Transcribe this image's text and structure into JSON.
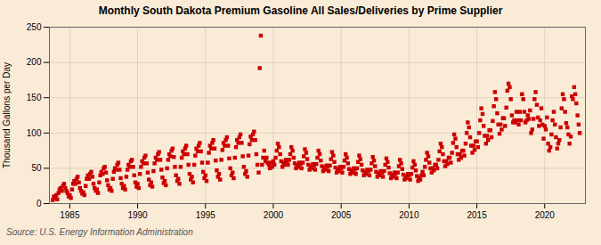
{
  "chart_data": {
    "type": "scatter",
    "title": "Monthly South Dakota Premium Gasoline All Sales/Deliveries by Prime Supplier",
    "ylabel": "Thousand Gallons per Day",
    "annotations": [
      "Source: U.S. Energy Information Administration"
    ],
    "color": "#cc0000",
    "marker": "square",
    "grid": true,
    "xlim": [
      1983.5,
      2023.0
    ],
    "ylim": [
      0,
      250
    ],
    "xticks": [
      1985,
      1990,
      1995,
      2000,
      2005,
      2010,
      2015,
      2020
    ],
    "yticks": [
      0,
      50,
      100,
      150,
      200,
      250
    ],
    "x": [
      1983.75,
      1983.83,
      1983.92,
      1984.0,
      1984.08,
      1984.17,
      1984.25,
      1984.33,
      1984.42,
      1984.5,
      1984.58,
      1984.67,
      1984.75,
      1984.83,
      1984.92,
      1985.0,
      1985.08,
      1985.17,
      1985.25,
      1985.33,
      1985.42,
      1985.5,
      1985.58,
      1985.67,
      1985.75,
      1985.83,
      1985.92,
      1986.0,
      1986.08,
      1986.17,
      1986.25,
      1986.33,
      1986.42,
      1986.5,
      1986.58,
      1986.67,
      1986.75,
      1986.83,
      1986.92,
      1987.0,
      1987.08,
      1987.17,
      1987.25,
      1987.33,
      1987.42,
      1987.5,
      1987.58,
      1987.67,
      1987.75,
      1987.83,
      1987.92,
      1988.0,
      1988.08,
      1988.17,
      1988.25,
      1988.33,
      1988.42,
      1988.5,
      1988.58,
      1988.67,
      1988.75,
      1988.83,
      1988.92,
      1989.0,
      1989.08,
      1989.17,
      1989.25,
      1989.33,
      1989.42,
      1989.5,
      1989.58,
      1989.67,
      1989.75,
      1989.83,
      1989.92,
      1990.0,
      1990.08,
      1990.17,
      1990.25,
      1990.33,
      1990.42,
      1990.5,
      1990.58,
      1990.67,
      1990.75,
      1990.83,
      1990.92,
      1991.0,
      1991.08,
      1991.17,
      1991.25,
      1991.33,
      1991.42,
      1991.5,
      1991.58,
      1991.67,
      1991.75,
      1991.83,
      1991.92,
      1992.0,
      1992.08,
      1992.17,
      1992.25,
      1992.33,
      1992.42,
      1992.5,
      1992.58,
      1992.67,
      1992.75,
      1992.83,
      1992.92,
      1993.0,
      1993.08,
      1993.17,
      1993.25,
      1993.33,
      1993.42,
      1993.5,
      1993.58,
      1993.67,
      1993.75,
      1993.83,
      1993.92,
      1994.0,
      1994.08,
      1994.17,
      1994.25,
      1994.33,
      1994.42,
      1994.5,
      1994.58,
      1994.67,
      1994.75,
      1994.83,
      1994.92,
      1995.0,
      1995.08,
      1995.17,
      1995.25,
      1995.33,
      1995.42,
      1995.5,
      1995.58,
      1995.67,
      1995.75,
      1995.83,
      1995.92,
      1996.0,
      1996.08,
      1996.17,
      1996.25,
      1996.33,
      1996.42,
      1996.5,
      1996.58,
      1996.67,
      1996.75,
      1996.83,
      1996.92,
      1997.0,
      1997.08,
      1997.17,
      1997.25,
      1997.33,
      1997.42,
      1997.5,
      1997.58,
      1997.67,
      1997.75,
      1997.83,
      1997.92,
      1998.0,
      1998.08,
      1998.17,
      1998.25,
      1998.33,
      1998.42,
      1998.5,
      1998.58,
      1998.67,
      1998.75,
      1998.83,
      1998.92,
      1999.0,
      1999.08,
      1999.17,
      1999.25,
      1999.33,
      1999.42,
      1999.5,
      1999.58,
      1999.67,
      1999.75,
      1999.83,
      1999.92,
      2000.0,
      2000.08,
      2000.17,
      2000.25,
      2000.33,
      2000.42,
      2000.5,
      2000.58,
      2000.67,
      2000.75,
      2000.83,
      2000.92,
      2001.0,
      2001.08,
      2001.17,
      2001.25,
      2001.33,
      2001.42,
      2001.5,
      2001.58,
      2001.67,
      2001.75,
      2001.83,
      2001.92,
      2002.0,
      2002.08,
      2002.17,
      2002.25,
      2002.33,
      2002.42,
      2002.5,
      2002.58,
      2002.67,
      2002.75,
      2002.83,
      2002.92,
      2003.0,
      2003.08,
      2003.17,
      2003.25,
      2003.33,
      2003.42,
      2003.5,
      2003.58,
      2003.67,
      2003.75,
      2003.83,
      2003.92,
      2004.0,
      2004.08,
      2004.17,
      2004.25,
      2004.33,
      2004.42,
      2004.5,
      2004.58,
      2004.67,
      2004.75,
      2004.83,
      2004.92,
      2005.0,
      2005.08,
      2005.17,
      2005.25,
      2005.33,
      2005.42,
      2005.5,
      2005.58,
      2005.67,
      2005.75,
      2005.83,
      2005.92,
      2006.0,
      2006.08,
      2006.17,
      2006.25,
      2006.33,
      2006.42,
      2006.5,
      2006.58,
      2006.67,
      2006.75,
      2006.83,
      2006.92,
      2007.0,
      2007.08,
      2007.17,
      2007.25,
      2007.33,
      2007.42,
      2007.5,
      2007.58,
      2007.67,
      2007.75,
      2007.83,
      2007.92,
      2008.0,
      2008.08,
      2008.17,
      2008.25,
      2008.33,
      2008.42,
      2008.5,
      2008.58,
      2008.67,
      2008.75,
      2008.83,
      2008.92,
      2009.0,
      2009.08,
      2009.17,
      2009.25,
      2009.33,
      2009.42,
      2009.5,
      2009.58,
      2009.67,
      2009.75,
      2009.83,
      2009.92,
      2010.0,
      2010.08,
      2010.17,
      2010.25,
      2010.33,
      2010.42,
      2010.5,
      2010.58,
      2010.67,
      2010.75,
      2010.83,
      2010.92,
      2011.0,
      2011.08,
      2011.17,
      2011.25,
      2011.33,
      2011.42,
      2011.5,
      2011.58,
      2011.67,
      2011.75,
      2011.83,
      2011.92,
      2012.0,
      2012.08,
      2012.17,
      2012.25,
      2012.33,
      2012.42,
      2012.5,
      2012.58,
      2012.67,
      2012.75,
      2012.83,
      2012.92,
      2013.0,
      2013.08,
      2013.17,
      2013.25,
      2013.33,
      2013.42,
      2013.5,
      2013.58,
      2013.67,
      2013.75,
      2013.83,
      2013.92,
      2014.0,
      2014.08,
      2014.17,
      2014.25,
      2014.33,
      2014.42,
      2014.5,
      2014.58,
      2014.67,
      2014.75,
      2014.83,
      2014.92,
      2015.0,
      2015.08,
      2015.17,
      2015.25,
      2015.33,
      2015.42,
      2015.5,
      2015.58,
      2015.67,
      2015.75,
      2015.83,
      2015.92,
      2016.0,
      2016.08,
      2016.17,
      2016.25,
      2016.33,
      2016.42,
      2016.5,
      2016.58,
      2016.67,
      2016.75,
      2016.83,
      2016.92,
      2017.0,
      2017.08,
      2017.17,
      2017.25,
      2017.33,
      2017.42,
      2017.5,
      2017.58,
      2017.67,
      2017.75,
      2017.83,
      2017.92,
      2018.0,
      2018.08,
      2018.17,
      2018.25,
      2018.33,
      2018.42,
      2018.5,
      2018.58,
      2018.67,
      2018.75,
      2018.83,
      2018.92,
      2019.0,
      2019.08,
      2019.17,
      2019.25,
      2019.33,
      2019.42,
      2019.5,
      2019.58,
      2019.67,
      2019.75,
      2019.83,
      2019.92,
      2020.0,
      2020.08,
      2020.17,
      2020.25,
      2020.33,
      2020.42,
      2020.5,
      2020.58,
      2020.67,
      2020.75,
      2020.83,
      2020.92,
      2021.0,
      2021.08,
      2021.17,
      2021.25,
      2021.33,
      2021.42,
      2021.5,
      2021.58,
      2021.67,
      2021.75,
      2021.83,
      2021.92,
      2022.0,
      2022.08,
      2022.17,
      2022.25,
      2022.33,
      2022.42,
      2022.5,
      2022.58
    ],
    "values": [
      5,
      10,
      8,
      12,
      6,
      15,
      20,
      22,
      18,
      25,
      28,
      22,
      18,
      15,
      10,
      12,
      8,
      20,
      28,
      32,
      28,
      35,
      38,
      30,
      22,
      18,
      14,
      16,
      12,
      25,
      35,
      40,
      35,
      42,
      45,
      38,
      28,
      22,
      18,
      20,
      15,
      30,
      40,
      45,
      42,
      50,
      52,
      44,
      33,
      26,
      20,
      22,
      18,
      35,
      45,
      50,
      48,
      55,
      58,
      48,
      36,
      28,
      22,
      25,
      20,
      38,
      48,
      55,
      52,
      60,
      62,
      52,
      40,
      30,
      24,
      28,
      22,
      42,
      52,
      60,
      57,
      65,
      68,
      57,
      44,
      34,
      26,
      30,
      24,
      46,
      57,
      65,
      62,
      70,
      73,
      62,
      48,
      37,
      29,
      32,
      26,
      50,
      62,
      70,
      67,
      75,
      78,
      66,
      52,
      40,
      32,
      35,
      28,
      52,
      65,
      74,
      70,
      78,
      82,
      70,
      55,
      42,
      34,
      38,
      30,
      55,
      68,
      78,
      74,
      82,
      86,
      74,
      58,
      45,
      36,
      40,
      32,
      58,
      72,
      82,
      78,
      86,
      90,
      78,
      61,
      47,
      38,
      42,
      34,
      62,
      76,
      86,
      82,
      90,
      94,
      82,
      64,
      50,
      40,
      44,
      36,
      65,
      80,
      90,
      86,
      94,
      98,
      86,
      67,
      52,
      42,
      46,
      38,
      68,
      84,
      95,
      90,
      98,
      102,
      90,
      70,
      55,
      44,
      192,
      238,
      55,
      65,
      75,
      60,
      65,
      58,
      55,
      50,
      58,
      52,
      60,
      55,
      65,
      75,
      85,
      80,
      70,
      60,
      52,
      58,
      55,
      62,
      60,
      55,
      62,
      70,
      80,
      75,
      65,
      57,
      50,
      55,
      52,
      58,
      56,
      50,
      58,
      67,
      77,
      72,
      63,
      55,
      48,
      53,
      50,
      56,
      54,
      48,
      56,
      65,
      75,
      70,
      61,
      53,
      46,
      51,
      48,
      54,
      52,
      46,
      54,
      63,
      73,
      68,
      59,
      51,
      44,
      49,
      46,
      52,
      50,
      44,
      52,
      61,
      70,
      65,
      57,
      49,
      42,
      47,
      44,
      50,
      48,
      42,
      50,
      59,
      68,
      63,
      55,
      47,
      40,
      45,
      42,
      48,
      46,
      40,
      48,
      57,
      66,
      61,
      53,
      45,
      38,
      43,
      40,
      46,
      44,
      38,
      46,
      55,
      64,
      59,
      51,
      43,
      36,
      41,
      38,
      44,
      42,
      36,
      44,
      53,
      62,
      57,
      49,
      41,
      34,
      39,
      36,
      42,
      40,
      34,
      42,
      51,
      60,
      55,
      47,
      39,
      32,
      37,
      34,
      40,
      45,
      40,
      52,
      62,
      72,
      67,
      58,
      50,
      44,
      50,
      47,
      55,
      55,
      50,
      62,
      74,
      85,
      80,
      70,
      60,
      53,
      60,
      56,
      65,
      65,
      58,
      72,
      86,
      98,
      92,
      80,
      70,
      62,
      70,
      65,
      75,
      75,
      68,
      85,
      100,
      115,
      108,
      94,
      82,
      72,
      82,
      76,
      88,
      88,
      80,
      100,
      118,
      135,
      127,
      110,
      96,
      85,
      96,
      90,
      104,
      104,
      94,
      117,
      138,
      158,
      148,
      128,
      112,
      99,
      112,
      105,
      121,
      121,
      110,
      136,
      160,
      170,
      165,
      148,
      125,
      115,
      118,
      115,
      130,
      118,
      112,
      130,
      118,
      155,
      148,
      130,
      115,
      118,
      125,
      120,
      132,
      100,
      105,
      120,
      148,
      158,
      140,
      122,
      110,
      118,
      135,
      112,
      92,
      110,
      105,
      122,
      85,
      75,
      80,
      98,
      118,
      130,
      112,
      94,
      78,
      85,
      90,
      108,
      135,
      155,
      148,
      130,
      114,
      108,
      98,
      85,
      95,
      152,
      148,
      165,
      155,
      142,
      125,
      112,
      100
    ]
  }
}
